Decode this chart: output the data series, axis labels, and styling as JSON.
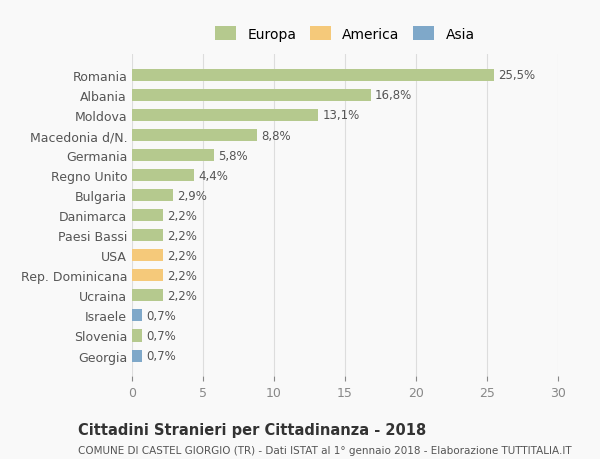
{
  "countries": [
    "Romania",
    "Albania",
    "Moldova",
    "Macedonia d/N.",
    "Germania",
    "Regno Unito",
    "Bulgaria",
    "Danimarca",
    "Paesi Bassi",
    "USA",
    "Rep. Dominicana",
    "Ucraina",
    "Israele",
    "Slovenia",
    "Georgia"
  ],
  "values": [
    25.5,
    16.8,
    13.1,
    8.8,
    5.8,
    4.4,
    2.9,
    2.2,
    2.2,
    2.2,
    2.2,
    2.2,
    0.7,
    0.7,
    0.7
  ],
  "labels": [
    "25,5%",
    "16,8%",
    "13,1%",
    "8,8%",
    "5,8%",
    "4,4%",
    "2,9%",
    "2,2%",
    "2,2%",
    "2,2%",
    "2,2%",
    "2,2%",
    "0,7%",
    "0,7%",
    "0,7%"
  ],
  "colors": [
    "#b5c98e",
    "#b5c98e",
    "#b5c98e",
    "#b5c98e",
    "#b5c98e",
    "#b5c98e",
    "#b5c98e",
    "#b5c98e",
    "#b5c98e",
    "#f5c97a",
    "#f5c97a",
    "#b5c98e",
    "#7fa8c9",
    "#b5c98e",
    "#7fa8c9"
  ],
  "continent": [
    "Europa",
    "Europa",
    "Europa",
    "Europa",
    "Europa",
    "Europa",
    "Europa",
    "Europa",
    "Europa",
    "America",
    "America",
    "Europa",
    "Asia",
    "Europa",
    "Asia"
  ],
  "legend_colors": {
    "Europa": "#b5c98e",
    "America": "#f5c97a",
    "Asia": "#7fa8c9"
  },
  "title": "Cittadini Stranieri per Cittadinanza - 2018",
  "subtitle": "COMUNE DI CASTEL GIORGIO (TR) - Dati ISTAT al 1° gennaio 2018 - Elaborazione TUTTITALIA.IT",
  "xlim": [
    0,
    30
  ],
  "xticks": [
    0,
    5,
    10,
    15,
    20,
    25,
    30
  ],
  "background_color": "#f9f9f9",
  "grid_color": "#dddddd"
}
